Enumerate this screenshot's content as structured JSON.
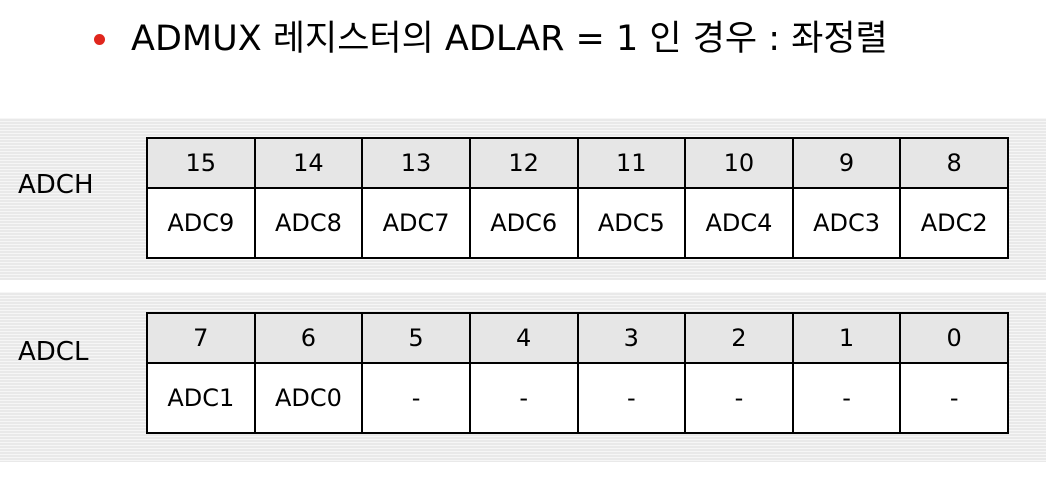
{
  "title": {
    "prefix": "ADMUX 레지스터의 ADLAR = 1 인 경우 : 좌정렬"
  },
  "registers": [
    {
      "name": "ADCH",
      "bits": [
        "15",
        "14",
        "13",
        "12",
        "11",
        "10",
        "9",
        "8"
      ],
      "values": [
        "ADC9",
        "ADC8",
        "ADC7",
        "ADC6",
        "ADC5",
        "ADC4",
        "ADC3",
        "ADC2"
      ]
    },
    {
      "name": "ADCL",
      "bits": [
        "7",
        "6",
        "5",
        "4",
        "3",
        "2",
        "1",
        "0"
      ],
      "values": [
        "ADC1",
        "ADC0",
        "-",
        "-",
        "-",
        "-",
        "-",
        "-"
      ]
    }
  ],
  "colors": {
    "bullet": "#e0261d",
    "bit_row_bg": "#e6e6e6",
    "border": "#000000"
  }
}
